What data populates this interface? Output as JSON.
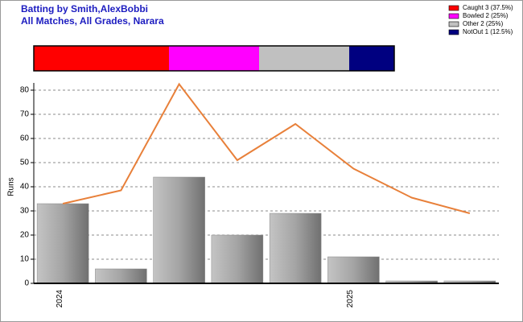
{
  "chart_data": [
    {
      "type": "combo",
      "title": "Batting by Smith,AlexBobbi",
      "subtitle": "All Matches, All Grades, Narara",
      "y_label": "Runs",
      "categories": [
        "2024",
        null,
        null,
        null,
        null,
        "2025",
        null,
        null
      ],
      "series": [
        {
          "type": "bar",
          "color": "#a0a0a0",
          "values": [
            33,
            6,
            44,
            20,
            29,
            11,
            1,
            1
          ]
        },
        {
          "type": "line",
          "color": "#e8803a",
          "values": [
            33,
            38.5,
            82.5,
            51,
            66,
            47.5,
            35.5,
            29
          ]
        }
      ],
      "ylim": [
        0,
        83
      ],
      "yticks": [
        0,
        10,
        20,
        30,
        40,
        50,
        60,
        70,
        80
      ],
      "grid": true
    },
    {
      "type": "stacked-bar",
      "xlim": [
        0,
        100
      ],
      "series": [
        {
          "name": "Caught 3 (37.5%)",
          "color": "#ff0000",
          "values": [
            37.5
          ]
        },
        {
          "name": "Bowled 2 (25%)",
          "color": "#ff00ff",
          "values": [
            25
          ]
        },
        {
          "name": "Other 2 (25%)",
          "color": "#c0c0c0",
          "values": [
            25
          ]
        },
        {
          "name": "NotOut 1 (12.5%)",
          "color": "#000080",
          "values": [
            12.5
          ]
        }
      ],
      "legend": "top-right"
    }
  ]
}
